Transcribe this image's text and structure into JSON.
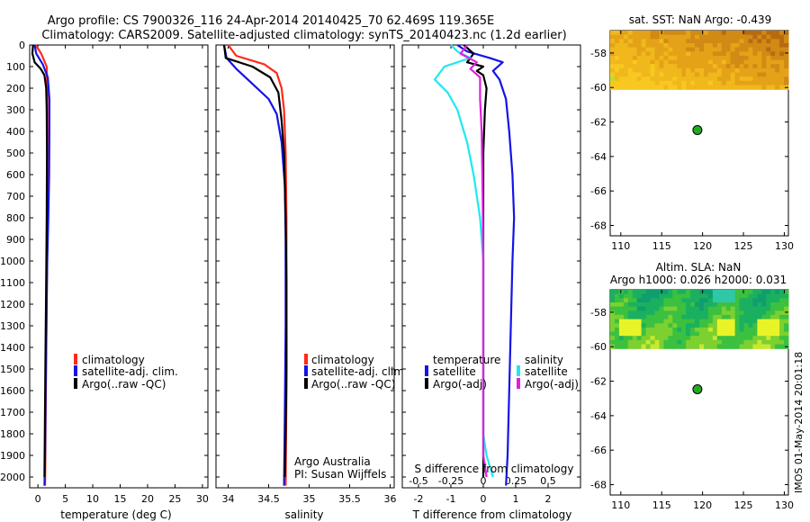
{
  "header": {
    "line1": "Argo profile: CS 7900326_116 24-Apr-2014 20140425_70 62.469S 119.365E",
    "line2": "Climatology: CARS2009. Satellite-adjusted climatology: synTS_20140423.nc (1.2d earlier)"
  },
  "colors": {
    "climatology": "#ff2a1a",
    "satellite": "#1414e6",
    "argo": "#000000",
    "satellite_s": "#20e8f0",
    "argo_s": "#e020e0"
  },
  "chart_data": [
    {
      "type": "line",
      "id": "temperature",
      "xlabel": "temperature (deg C)",
      "ylabel": "",
      "xlim": [
        -1.5,
        31
      ],
      "ylim": [
        2050,
        0
      ],
      "xticks": [
        0,
        5,
        10,
        15,
        20,
        25,
        30
      ],
      "yticks": [
        0,
        100,
        200,
        300,
        400,
        500,
        600,
        700,
        800,
        900,
        1000,
        1100,
        1200,
        1300,
        1400,
        1500,
        1600,
        1700,
        1800,
        1900,
        2000
      ],
      "legend": {
        "position": "lower-right",
        "entries": [
          {
            "label": "climatology",
            "series": "climatology"
          },
          {
            "label": "satellite-adj. clim.",
            "series": "satellite"
          },
          {
            "label": "Argo(..raw -QC)",
            "series": "argo"
          }
        ]
      },
      "series": [
        {
          "name": "climatology",
          "color": "#ff2a1a",
          "points": [
            [
              -0.4,
              0
            ],
            [
              0.6,
              40
            ],
            [
              1.6,
              100
            ],
            [
              1.7,
              200
            ],
            [
              1.75,
              400
            ],
            [
              1.7,
              700
            ],
            [
              1.65,
              1000
            ],
            [
              1.55,
              1300
            ],
            [
              1.45,
              1600
            ],
            [
              1.35,
              1900
            ],
            [
              1.3,
              2040
            ]
          ]
        },
        {
          "name": "satellite-adj. clim.",
          "color": "#1414e6",
          "points": [
            [
              -0.6,
              0
            ],
            [
              -0.3,
              40
            ],
            [
              0.9,
              90
            ],
            [
              1.8,
              150
            ],
            [
              2.1,
              250
            ],
            [
              2.1,
              400
            ],
            [
              2.05,
              600
            ],
            [
              1.9,
              800
            ],
            [
              1.7,
              1000
            ],
            [
              1.55,
              1300
            ],
            [
              1.4,
              1600
            ],
            [
              1.3,
              1900
            ],
            [
              1.2,
              2040
            ]
          ]
        },
        {
          "name": "Argo(..raw -QC)",
          "color": "#000000",
          "points": [
            [
              -0.9,
              0
            ],
            [
              -1.0,
              40
            ],
            [
              -0.6,
              80
            ],
            [
              0.5,
              110
            ],
            [
              1.2,
              140
            ],
            [
              1.5,
              200
            ],
            [
              1.6,
              300
            ],
            [
              1.65,
              500
            ],
            [
              1.6,
              800
            ],
            [
              1.5,
              1100
            ],
            [
              1.35,
              1500
            ],
            [
              1.25,
              1800
            ],
            [
              1.2,
              2000
            ]
          ]
        }
      ]
    },
    {
      "type": "line",
      "id": "salinity",
      "xlabel": "salinity",
      "ylabel": "",
      "xlim": [
        33.85,
        36.05
      ],
      "ylim": [
        2050,
        0
      ],
      "xticks": [
        34,
        34.5,
        35,
        35.5,
        36
      ],
      "xtick_labels": [
        "34",
        "34.5",
        "35",
        "35.5",
        "36"
      ],
      "legend": {
        "position": "lower-right",
        "entries": [
          {
            "label": "climatology",
            "series": "climatology"
          },
          {
            "label": "satellite-adj. clim.",
            "series": "satellite"
          },
          {
            "label": "Argo(..raw -QC)",
            "series": "argo"
          }
        ]
      },
      "annotations": [
        "Argo Australia",
        "PI: Susan Wijffels"
      ],
      "series": [
        {
          "name": "climatology",
          "color": "#ff2a1a",
          "points": [
            [
              34.0,
              0
            ],
            [
              34.1,
              50
            ],
            [
              34.45,
              90
            ],
            [
              34.6,
              130
            ],
            [
              34.66,
              200
            ],
            [
              34.69,
              300
            ],
            [
              34.71,
              500
            ],
            [
              34.72,
              800
            ],
            [
              34.72,
              1200
            ],
            [
              34.72,
              1600
            ],
            [
              34.71,
              2040
            ]
          ]
        },
        {
          "name": "satellite-adj. clim.",
          "color": "#1414e6",
          "points": [
            [
              33.95,
              0
            ],
            [
              33.98,
              60
            ],
            [
              34.1,
              110
            ],
            [
              34.3,
              180
            ],
            [
              34.5,
              250
            ],
            [
              34.6,
              320
            ],
            [
              34.66,
              450
            ],
            [
              34.7,
              650
            ],
            [
              34.71,
              900
            ],
            [
              34.71,
              1300
            ],
            [
              34.7,
              1700
            ],
            [
              34.69,
              2040
            ]
          ]
        },
        {
          "name": "Argo(..raw -QC)",
          "color": "#000000",
          "points": [
            [
              33.95,
              0
            ],
            [
              33.97,
              60
            ],
            [
              34.3,
              100
            ],
            [
              34.52,
              150
            ],
            [
              34.62,
              220
            ],
            [
              34.66,
              350
            ],
            [
              34.69,
              500
            ],
            [
              34.71,
              800
            ],
            [
              34.72,
              1100
            ],
            [
              34.72,
              1500
            ],
            [
              34.71,
              1800
            ],
            [
              34.7,
              2000
            ]
          ]
        }
      ]
    },
    {
      "type": "line",
      "id": "difference",
      "xlabel": "T difference from climatology",
      "x2label": "S difference from climatology",
      "xlim": [
        -2.5,
        3.0
      ],
      "ylim": [
        2050,
        0
      ],
      "xticks": [
        -2,
        -1,
        0,
        1,
        2
      ],
      "x2ticks": [
        -0.5,
        -0.25,
        0,
        0.25,
        0.5
      ],
      "x2tick_labels": [
        "-0.5",
        "-0.25",
        "0",
        "0.25",
        "0.5"
      ],
      "x2_scale": 4,
      "legend": {
        "position": "lower",
        "temperature_title": "temperature",
        "salinity_title": "salinity",
        "entries": [
          {
            "label": "satellite",
            "series": "satellite"
          },
          {
            "label": "Argo(-adj)",
            "series": "argo"
          },
          {
            "label": "satellite",
            "series": "satellite_s"
          },
          {
            "label": "Argo(-adj)",
            "series": "argo_s"
          }
        ]
      },
      "series": [
        {
          "name": "satellite T",
          "color": "#1414e6",
          "points": [
            [
              -0.8,
              0
            ],
            [
              -0.5,
              30
            ],
            [
              0.2,
              60
            ],
            [
              0.6,
              80
            ],
            [
              0.3,
              120
            ],
            [
              0.5,
              160
            ],
            [
              0.7,
              250
            ],
            [
              0.8,
              400
            ],
            [
              0.9,
              600
            ],
            [
              0.95,
              800
            ],
            [
              0.9,
              1000
            ],
            [
              0.85,
              1300
            ],
            [
              0.8,
              1600
            ],
            [
              0.75,
              1900
            ],
            [
              0.7,
              2040
            ]
          ]
        },
        {
          "name": "Argo T",
          "color": "#000000",
          "points": [
            [
              -0.6,
              0
            ],
            [
              -0.3,
              40
            ],
            [
              -0.5,
              80
            ],
            [
              0.0,
              100
            ],
            [
              -0.2,
              120
            ],
            [
              0.0,
              140
            ],
            [
              0.1,
              200
            ],
            [
              0.05,
              300
            ],
            [
              0.0,
              500
            ],
            [
              0.0,
              800
            ],
            [
              0.0,
              1200
            ],
            [
              0.0,
              1600
            ],
            [
              0.0,
              2000
            ]
          ]
        },
        {
          "name": "satellite S",
          "color": "#20e8f0",
          "points": [
            [
              -1.0,
              0
            ],
            [
              -0.8,
              30
            ],
            [
              -0.4,
              60
            ],
            [
              -1.2,
              100
            ],
            [
              -1.5,
              160
            ],
            [
              -1.1,
              220
            ],
            [
              -0.8,
              300
            ],
            [
              -0.5,
              450
            ],
            [
              -0.3,
              600
            ],
            [
              -0.1,
              800
            ],
            [
              0.0,
              1000
            ],
            [
              0.0,
              1300
            ],
            [
              0.0,
              1600
            ],
            [
              0.0,
              1800
            ],
            [
              0.1,
              1900
            ],
            [
              0.3,
              2000
            ]
          ]
        },
        {
          "name": "Argo S",
          "color": "#e020e0",
          "points": [
            [
              -0.5,
              0
            ],
            [
              -0.7,
              40
            ],
            [
              -0.2,
              80
            ],
            [
              -0.4,
              110
            ],
            [
              -0.1,
              150
            ],
            [
              -0.1,
              250
            ],
            [
              -0.05,
              400
            ],
            [
              -0.02,
              700
            ],
            [
              0.0,
              1000
            ],
            [
              0.0,
              1400
            ],
            [
              0.0,
              1700
            ],
            [
              0.0,
              1900
            ],
            [
              0.1,
              2000
            ]
          ]
        }
      ]
    },
    {
      "type": "heatmap",
      "id": "sst-map",
      "title": "sat. SST: NaN Argo: -0.439",
      "xlim": [
        108.7,
        130.5
      ],
      "ylim": [
        -68.6,
        -56.7
      ],
      "xticks": [
        110,
        115,
        120,
        125,
        130
      ],
      "yticks": [
        -58,
        -60,
        -62,
        -64,
        -66,
        -68
      ],
      "ytick_labels": [
        "-58",
        "-60",
        "-62",
        "-64",
        "-66",
        "-68"
      ],
      "data_extent_lat": [
        -60.1,
        -56.7
      ],
      "colormap": [
        "#b86a10",
        "#d18a14",
        "#e4a218",
        "#f0b81c",
        "#f8c820",
        "#b8e030"
      ],
      "marker": {
        "lon": 119.365,
        "lat": -62.469,
        "color": "#22aa22"
      }
    },
    {
      "type": "heatmap",
      "id": "sla-map",
      "title": "Altim. SLA: NaN",
      "subtitle": "Argo h1000: 0.026 h2000: 0.031",
      "xlim": [
        108.7,
        130.5
      ],
      "ylim": [
        -68.6,
        -56.7
      ],
      "xticks": [
        110,
        115,
        120,
        125,
        130
      ],
      "yticks": [
        -58,
        -60,
        -62,
        -64,
        -66,
        -68
      ],
      "ytick_labels": [
        "-58",
        "-60",
        "-62",
        "-64",
        "-66",
        "-68"
      ],
      "data_extent_lat": [
        -60.1,
        -56.7
      ],
      "colormap": [
        "#0f9e6e",
        "#1ab060",
        "#3cc040",
        "#7cd030",
        "#c8e830",
        "#e8f428",
        "#2ec8a8"
      ],
      "marker": {
        "lon": 119.365,
        "lat": -62.469,
        "color": "#22aa22"
      }
    }
  ],
  "credit": "IMOS 01-May-2014 20:01:18"
}
